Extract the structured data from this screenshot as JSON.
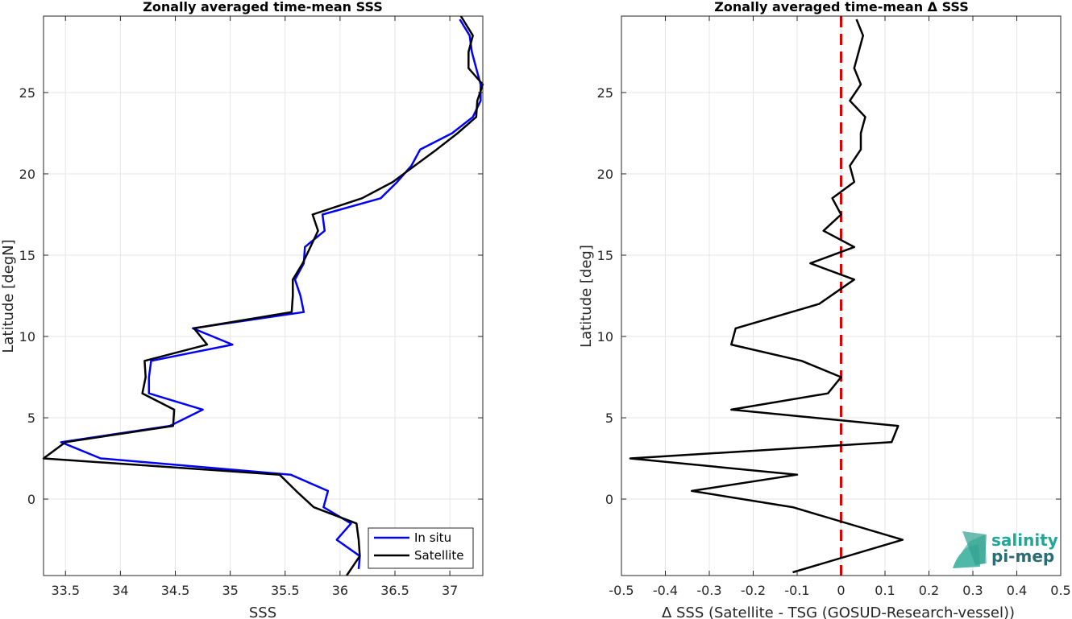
{
  "chart_data": [
    {
      "type": "line",
      "title": "Zonally averaged time-mean SSS",
      "xlabel": "SSS",
      "ylabel": "Latitude [degN]",
      "xlim": [
        33.3,
        37.3
      ],
      "ylim": [
        -4.7,
        29.7
      ],
      "xticks": [
        "33.5",
        "34",
        "34.5",
        "35",
        "35.5",
        "36",
        "36.5",
        "37"
      ],
      "xtick_values": [
        33.5,
        34,
        34.5,
        35,
        35.5,
        36,
        36.5,
        37
      ],
      "yticks": [
        "0",
        "5",
        "10",
        "15",
        "20",
        "25"
      ],
      "ytick_values": [
        0,
        5,
        10,
        15,
        20,
        25
      ],
      "grid": true,
      "legend_position": "bottom-right",
      "series": [
        {
          "name": "In situ",
          "color": "#0000ff",
          "points": [
            [
              36.17,
              -4.3
            ],
            [
              36.18,
              -3.5
            ],
            [
              35.97,
              -2.5
            ],
            [
              36.1,
              -1.5
            ],
            [
              35.85,
              -0.5
            ],
            [
              35.89,
              0.5
            ],
            [
              35.55,
              1.5
            ],
            [
              33.82,
              2.5
            ],
            [
              33.46,
              3.5
            ],
            [
              34.45,
              4.5
            ],
            [
              34.75,
              5.5
            ],
            [
              34.26,
              6.5
            ],
            [
              34.26,
              7.5
            ],
            [
              34.28,
              8.5
            ],
            [
              35.02,
              9.5
            ],
            [
              34.66,
              10.5
            ],
            [
              35.67,
              11.5
            ],
            [
              35.64,
              12.5
            ],
            [
              35.59,
              13.5
            ],
            [
              35.67,
              14.5
            ],
            [
              35.68,
              15.5
            ],
            [
              35.86,
              16.5
            ],
            [
              35.84,
              17.5
            ],
            [
              36.37,
              18.5
            ],
            [
              36.52,
              19.5
            ],
            [
              36.65,
              20.5
            ],
            [
              36.73,
              21.5
            ],
            [
              37.02,
              22.5
            ],
            [
              37.21,
              23.5
            ],
            [
              37.28,
              24.5
            ],
            [
              37.28,
              25.5
            ],
            [
              37.24,
              26.5
            ],
            [
              37.2,
              27.5
            ],
            [
              37.18,
              28.5
            ],
            [
              37.09,
              29.5
            ]
          ]
        },
        {
          "name": "Satellite",
          "color": "#000000",
          "points": [
            [
              36.06,
              -4.7
            ],
            [
              36.18,
              -3.5
            ],
            [
              36.17,
              -2.5
            ],
            [
              36.15,
              -1.5
            ],
            [
              35.76,
              -0.5
            ],
            [
              35.6,
              0.5
            ],
            [
              35.45,
              1.5
            ],
            [
              33.3,
              2.5
            ],
            [
              33.5,
              3.5
            ],
            [
              34.48,
              4.5
            ],
            [
              34.49,
              5.5
            ],
            [
              34.2,
              6.5
            ],
            [
              34.23,
              7.5
            ],
            [
              34.22,
              8.5
            ],
            [
              34.79,
              9.5
            ],
            [
              34.67,
              10.5
            ],
            [
              35.56,
              11.5
            ],
            [
              35.57,
              12.5
            ],
            [
              35.57,
              13.5
            ],
            [
              35.66,
              14.5
            ],
            [
              35.73,
              15.5
            ],
            [
              35.8,
              16.5
            ],
            [
              35.75,
              17.5
            ],
            [
              36.2,
              18.5
            ],
            [
              36.48,
              19.5
            ],
            [
              36.68,
              20.5
            ],
            [
              36.88,
              21.5
            ],
            [
              37.07,
              22.5
            ],
            [
              37.24,
              23.5
            ],
            [
              37.25,
              24.5
            ],
            [
              37.3,
              25.5
            ],
            [
              37.17,
              26.5
            ],
            [
              37.17,
              27.5
            ],
            [
              37.21,
              28.5
            ],
            [
              37.1,
              29.7
            ]
          ]
        }
      ]
    },
    {
      "type": "line",
      "title": "Zonally averaged time-mean Δ SSS",
      "xlabel": "Δ SSS (Satellite - TSG (GOSUD-Research-vessel))",
      "ylabel": "Latitude [deg]",
      "xlim": [
        -0.5,
        0.5
      ],
      "ylim": [
        -4.7,
        29.7
      ],
      "xticks": [
        "-0.5",
        "-0.4",
        "-0.3",
        "-0.2",
        "-0.1",
        "0",
        "0.1",
        "0.2",
        "0.3",
        "0.4",
        "0.5"
      ],
      "xtick_values": [
        -0.5,
        -0.4,
        -0.3,
        -0.2,
        -0.1,
        0,
        0.1,
        0.2,
        0.3,
        0.4,
        0.5
      ],
      "yticks": [
        "0",
        "5",
        "10",
        "15",
        "20",
        "25"
      ],
      "ytick_values": [
        0,
        5,
        10,
        15,
        20,
        25
      ],
      "grid": true,
      "reference_line": {
        "x": 0,
        "color": "#e00000",
        "style": "dashed"
      },
      "series": [
        {
          "color": "#000000",
          "points": [
            [
              -0.11,
              -4.5
            ],
            [
              0.14,
              -2.5
            ],
            [
              -0.11,
              -0.5
            ],
            [
              -0.34,
              0.5
            ],
            [
              -0.1,
              1.5
            ],
            [
              -0.48,
              2.5
            ],
            [
              0.115,
              3.5
            ],
            [
              0.13,
              4.5
            ],
            [
              -0.25,
              5.5
            ],
            [
              -0.03,
              6.5
            ],
            [
              0.0,
              7.5
            ],
            [
              -0.09,
              8.5
            ],
            [
              -0.25,
              9.5
            ],
            [
              -0.24,
              10.5
            ],
            [
              -0.05,
              12.0
            ],
            [
              0.03,
              13.5
            ],
            [
              -0.07,
              14.5
            ],
            [
              0.03,
              15.5
            ],
            [
              -0.04,
              16.5
            ],
            [
              0.0,
              17.5
            ],
            [
              -0.02,
              18.5
            ],
            [
              0.03,
              19.5
            ],
            [
              0.02,
              20.5
            ],
            [
              0.045,
              21.5
            ],
            [
              0.045,
              22.5
            ],
            [
              0.055,
              23.5
            ],
            [
              0.02,
              24.5
            ],
            [
              0.045,
              25.5
            ],
            [
              0.03,
              26.5
            ],
            [
              0.04,
              27.5
            ],
            [
              0.05,
              28.5
            ],
            [
              0.035,
              29.5
            ]
          ]
        }
      ]
    }
  ],
  "logo": {
    "line1": "salinity",
    "line2": "pi-mep"
  }
}
